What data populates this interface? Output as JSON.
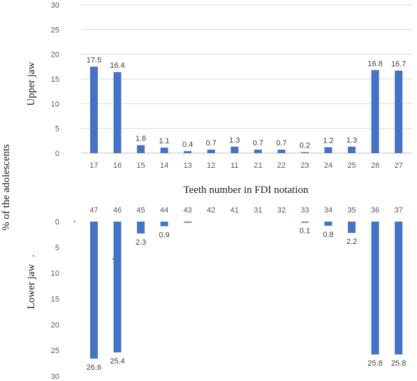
{
  "figure": {
    "y_axis_label": "% of the adolescents",
    "x_axis_label": "Teeth number in FDI notation"
  },
  "colors": {
    "bar": "#4472c4",
    "grid": "#d9d9d9",
    "tick_text": "#595959"
  },
  "chart_data": [
    {
      "type": "bar",
      "panel_label": "Upper jaw",
      "categories": [
        "17",
        "16",
        "15",
        "14",
        "13",
        "12",
        "11",
        "21",
        "22",
        "23",
        "24",
        "25",
        "26",
        "27"
      ],
      "values": [
        17.5,
        16.4,
        1.6,
        1.1,
        0.4,
        0.7,
        1.3,
        0.7,
        0.7,
        0.2,
        1.2,
        1.3,
        16.8,
        16.7
      ],
      "data_labels": [
        "17.5",
        "16.4",
        "1.6",
        "1.1",
        "0.4",
        "0.7",
        "1.3",
        "0.7",
        "0.7",
        "0.2",
        "1.2",
        "1.3",
        "16.8",
        "16.7"
      ],
      "ylim": [
        0,
        30
      ],
      "yticks": [
        0,
        5,
        10,
        15,
        20,
        25,
        30
      ],
      "category_axis_position": "bottom",
      "grid": true
    },
    {
      "type": "bar",
      "panel_label": "Lower jaw",
      "categories": [
        "47",
        "46",
        "45",
        "44",
        "43",
        "42",
        "41",
        "31",
        "32",
        "33",
        "34",
        "35",
        "36",
        "37"
      ],
      "values": [
        26.6,
        25.4,
        2.3,
        0.9,
        0.2,
        0,
        0,
        0,
        0,
        0.1,
        0.8,
        2.2,
        25.8,
        25.8
      ],
      "data_labels": [
        "26.6",
        "25.4",
        "2.3",
        "0.9",
        "",
        "",
        "",
        "",
        "",
        "0.1",
        "0.8",
        "2.2",
        "25.8",
        "25.8"
      ],
      "ylim": [
        0,
        30
      ],
      "yticks": [
        0,
        5,
        10,
        15,
        20,
        25,
        30
      ],
      "y_axis_inverted": true,
      "category_axis_position": "top",
      "grid": false
    }
  ]
}
